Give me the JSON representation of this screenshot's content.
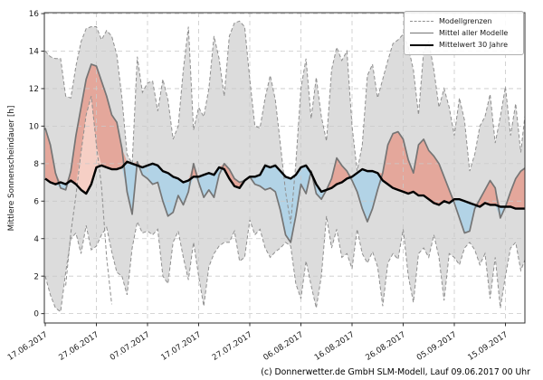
{
  "chart_data": {
    "type": "line",
    "title": "",
    "ylabel": "Mittlere Sonnenscheindauer [h]",
    "xlabel": "",
    "grid": true,
    "y_axis": {
      "ticks": [
        0,
        2,
        4,
        6,
        8,
        10,
        12,
        14,
        16
      ],
      "lim": [
        -0.5,
        16.05
      ]
    },
    "x_axis": {
      "start_date": "17.06.2017",
      "tick_day_index": [
        0,
        10,
        20,
        30,
        40,
        50,
        60,
        70,
        80,
        90
      ],
      "tick_labels": [
        "17.06.2017",
        "27.06.2017",
        "07.07.2017",
        "17.07.2017",
        "27.07.2017",
        "06.08.2017",
        "16.08.2017",
        "26.08.2017",
        "05.09.2017",
        "15.09.2017"
      ],
      "day_span": [
        0,
        94
      ]
    },
    "legend": {
      "position": "upper right",
      "entries": [
        {
          "label": "Modellgrenzen",
          "style": "dashed-gray"
        },
        {
          "label": "Mittel aller Modelle",
          "style": "solid-gray"
        },
        {
          "label": "Mittelwert 30 Jahre",
          "style": "thick-black"
        }
      ]
    },
    "series": [
      {
        "name": "Modellgrenzen (obere Grenze)",
        "role": "upper_bound",
        "values": [
          14.0,
          13.7,
          13.6,
          13.6,
          11.6,
          11.5,
          13.2,
          14.5,
          15.2,
          15.3,
          15.3,
          14.6,
          15.1,
          14.8,
          13.8,
          11.5,
          8.5,
          8.0,
          13.7,
          11.8,
          12.3,
          12.4,
          10.8,
          12.5,
          11.4,
          9.3,
          10.0,
          13.0,
          15.3,
          9.8,
          11.0,
          10.5,
          12.0,
          14.8,
          13.6,
          11.6,
          14.8,
          15.5,
          15.6,
          15.3,
          12.5,
          10.0,
          9.9,
          11.5,
          12.7,
          11.4,
          9.0,
          6.5,
          4.8,
          8.0,
          12.0,
          13.6,
          10.4,
          12.6,
          10.5,
          9.2,
          13.0,
          14.2,
          13.5,
          14.0,
          10.0,
          7.6,
          9.0,
          12.7,
          13.3,
          11.5,
          12.5,
          13.5,
          14.4,
          14.6,
          14.9,
          14.2,
          13.0,
          10.6,
          14.0,
          14.5,
          13.0,
          11.0,
          12.0,
          11.0,
          9.5,
          11.5,
          10.3,
          7.6,
          8.5,
          10.0,
          10.5,
          11.7,
          9.1,
          10.5,
          12.1,
          9.5,
          11.2,
          8.6,
          11.0
        ]
      },
      {
        "name": "Modellgrenzen (untere Grenze)",
        "role": "lower_bound",
        "values": [
          2.0,
          1.0,
          0.3,
          0.1,
          2.2,
          4.0,
          4.3,
          3.2,
          4.7,
          3.4,
          3.6,
          4.2,
          4.6,
          3.3,
          2.2,
          2.0,
          1.0,
          3.5,
          4.9,
          4.3,
          4.4,
          4.2,
          4.5,
          2.0,
          1.6,
          3.8,
          4.4,
          3.0,
          1.8,
          3.8,
          2.0,
          0.4,
          2.5,
          3.2,
          3.6,
          3.8,
          3.8,
          4.4,
          2.8,
          3.0,
          5.0,
          4.2,
          4.5,
          3.5,
          3.0,
          3.3,
          3.5,
          3.8,
          3.6,
          1.6,
          0.8,
          2.8,
          1.5,
          0.3,
          2.0,
          5.2,
          3.5,
          4.5,
          3.0,
          3.2,
          2.4,
          4.5,
          3.2,
          2.7,
          3.3,
          2.5,
          0.4,
          2.7,
          3.2,
          2.9,
          4.5,
          2.0,
          0.6,
          3.2,
          3.5,
          3.0,
          4.2,
          3.0,
          0.7,
          3.2,
          3.0,
          2.6,
          3.5,
          3.8,
          3.4,
          2.6,
          3.2,
          0.8,
          3.0,
          0.3,
          2.0,
          3.5,
          3.8,
          2.3,
          3.0
        ]
      },
      {
        "name": "Modellgrenzen (innere Grenze)",
        "role": "inner_bound",
        "values": [
          null,
          null,
          null,
          null,
          1.5,
          4.3,
          6.3,
          8.6,
          10.6,
          11.6,
          9.0,
          6.8,
          3.0,
          0.5,
          null,
          null,
          null,
          null,
          null,
          null,
          null,
          null,
          null,
          null,
          null,
          null,
          null,
          null,
          null,
          null,
          null,
          null,
          null,
          null,
          null,
          null,
          null,
          null,
          null,
          null,
          null,
          null,
          null,
          null,
          null,
          null,
          null,
          null,
          null,
          null,
          null,
          null,
          null,
          null,
          null,
          null,
          null,
          null,
          null,
          null,
          null,
          null,
          null,
          null,
          null,
          null,
          null,
          null,
          null,
          null,
          null,
          null,
          null,
          null,
          null,
          null,
          null,
          null,
          null,
          null,
          null,
          null,
          null,
          null,
          null,
          null,
          null,
          null,
          null,
          null,
          null,
          null,
          null,
          null,
          null
        ]
      },
      {
        "name": "Mittel aller Modelle",
        "role": "model_mean",
        "values": [
          9.9,
          9.0,
          7.5,
          6.7,
          6.6,
          7.6,
          9.5,
          11.0,
          12.5,
          13.3,
          13.2,
          12.4,
          11.6,
          10.6,
          10.2,
          8.8,
          6.5,
          5.3,
          8.1,
          7.4,
          7.2,
          6.9,
          7.0,
          6.0,
          5.2,
          5.4,
          6.3,
          5.8,
          6.5,
          8.0,
          7.0,
          6.2,
          6.6,
          6.2,
          7.4,
          8.0,
          7.7,
          7.2,
          7.0,
          7.1,
          7.3,
          6.9,
          6.8,
          6.6,
          6.7,
          6.5,
          5.5,
          4.2,
          3.8,
          5.2,
          6.9,
          6.4,
          7.6,
          6.4,
          6.1,
          6.6,
          7.2,
          8.3,
          7.9,
          7.6,
          7.1,
          6.5,
          5.6,
          4.9,
          5.6,
          6.6,
          7.5,
          9.0,
          9.6,
          9.7,
          9.3,
          8.2,
          7.5,
          9.0,
          9.3,
          8.7,
          8.4,
          8.0,
          7.3,
          6.6,
          5.9,
          5.1,
          4.3,
          4.4,
          5.6,
          6.1,
          6.6,
          7.1,
          6.7,
          5.1,
          5.7,
          6.5,
          7.2,
          7.6,
          7.8
        ]
      },
      {
        "name": "Mittelwert 30 Jahre",
        "role": "climate_mean",
        "values": [
          7.2,
          7.0,
          6.9,
          7.0,
          6.9,
          7.1,
          6.9,
          6.6,
          6.4,
          6.9,
          7.8,
          7.9,
          7.8,
          7.7,
          7.7,
          7.8,
          8.1,
          8.0,
          7.9,
          7.8,
          7.9,
          8.0,
          7.9,
          7.6,
          7.5,
          7.3,
          7.2,
          7.0,
          7.1,
          7.3,
          7.3,
          7.4,
          7.5,
          7.4,
          7.8,
          7.7,
          7.2,
          6.8,
          6.7,
          7.1,
          7.3,
          7.3,
          7.4,
          7.9,
          7.8,
          7.9,
          7.6,
          7.3,
          7.2,
          7.4,
          7.8,
          7.9,
          7.5,
          6.9,
          6.5,
          6.6,
          6.7,
          6.9,
          7.0,
          7.2,
          7.3,
          7.5,
          7.7,
          7.6,
          7.6,
          7.5,
          7.1,
          6.9,
          6.7,
          6.6,
          6.5,
          6.4,
          6.5,
          6.3,
          6.3,
          6.1,
          5.9,
          5.8,
          6.0,
          5.9,
          6.1,
          6.1,
          6.0,
          5.9,
          5.8,
          5.7,
          5.9,
          5.8,
          5.8,
          5.7,
          5.7,
          5.7,
          5.6,
          5.6,
          5.6
        ]
      }
    ],
    "colors": {
      "band_fill": "#dcdcdc",
      "above_normal_fill": "#e4a79b",
      "above_normal_light_fill": "#f6cfc5",
      "below_normal_fill": "#b2d3e6",
      "bound_dash_line": "#8f8f8f",
      "model_mean_line": "#757575",
      "climate_mean_line": "#000000",
      "grid": "#c9c9c9",
      "spine": "#303030",
      "text": "#1a1a1a"
    }
  },
  "footer": {
    "credit": "(c) Donnerwetter.de GmbH SLM-Modell, Lauf 09.06.2017 00 Uhr"
  }
}
